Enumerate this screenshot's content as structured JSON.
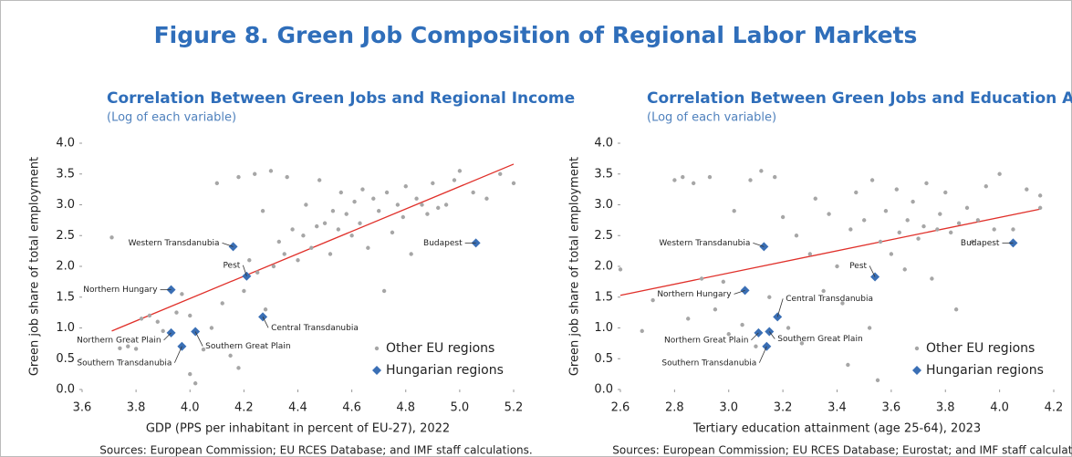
{
  "title": "Figure 8. Green Job Composition of Regional Labor Markets",
  "chart_data": [
    {
      "type": "scatter",
      "title": "Correlation Between Green Jobs and Regional Income",
      "subtitle": "(Log of each variable)",
      "xlabel": "GDP (PPS per inhabitant in percent of EU-27), 2022",
      "ylabel": "Green job share of total employment",
      "source": "Sources: European Commission; EU RCES Database; and IMF staff calculations.",
      "xlim": [
        3.6,
        5.2
      ],
      "ylim": [
        0,
        4
      ],
      "xticks": [
        3.6,
        3.8,
        {
          "value": 4,
          "label": "4.0"
        },
        4.2,
        4.4,
        4.6,
        4.8,
        {
          "value": 5,
          "label": "5.0"
        },
        5.2
      ],
      "yticks": [
        {
          "value": 0,
          "label": "0.0"
        },
        0.5,
        {
          "value": 1,
          "label": "1.0"
        },
        1.5,
        {
          "value": 2,
          "label": "2.0"
        },
        2.5,
        {
          "value": 3,
          "label": "3.0"
        },
        3.5,
        {
          "value": 4,
          "label": "4.0"
        }
      ],
      "legend": "lower right",
      "trendline": {
        "x": [
          3.71,
          5.2
        ],
        "values": [
          0.95,
          3.66
        ],
        "color": "#e0302a"
      },
      "series": [
        {
          "name": "Other EU regions",
          "color": "#a6a6a6",
          "marker": "circle",
          "x": [
            3.71,
            3.74,
            3.77,
            3.8,
            3.82,
            3.85,
            3.88,
            3.9,
            3.95,
            3.97,
            4.0,
            4.0,
            4.02,
            4.05,
            4.08,
            4.1,
            4.12,
            4.15,
            4.18,
            4.18,
            4.2,
            4.22,
            4.24,
            4.25,
            4.27,
            4.28,
            4.3,
            4.31,
            4.33,
            4.35,
            4.36,
            4.38,
            4.4,
            4.42,
            4.43,
            4.45,
            4.47,
            4.48,
            4.5,
            4.52,
            4.53,
            4.55,
            4.56,
            4.58,
            4.6,
            4.61,
            4.63,
            4.64,
            4.66,
            4.68,
            4.7,
            4.72,
            4.73,
            4.75,
            4.77,
            4.79,
            4.8,
            4.82,
            4.84,
            4.86,
            4.88,
            4.9,
            4.92,
            4.95,
            4.98,
            5.0,
            5.05,
            5.1,
            5.15,
            5.2
          ],
          "values": [
            2.47,
            0.67,
            0.7,
            0.66,
            1.15,
            1.2,
            1.1,
            0.95,
            1.25,
            1.55,
            1.2,
            0.25,
            0.1,
            0.65,
            1.0,
            3.35,
            1.4,
            0.55,
            3.45,
            0.35,
            1.6,
            2.1,
            3.5,
            1.9,
            2.9,
            1.3,
            3.55,
            2.0,
            2.4,
            2.2,
            3.45,
            2.6,
            2.1,
            2.5,
            3.0,
            2.3,
            2.65,
            3.4,
            2.7,
            2.2,
            2.9,
            2.6,
            3.2,
            2.85,
            2.5,
            3.05,
            2.7,
            3.25,
            2.3,
            3.1,
            2.9,
            1.6,
            3.2,
            2.55,
            3.0,
            2.8,
            3.3,
            2.2,
            3.1,
            3.0,
            2.85,
            3.35,
            2.95,
            3.0,
            3.4,
            3.55,
            3.2,
            3.1,
            3.5,
            3.35
          ]
        },
        {
          "name": "Hungarian regions",
          "color": "#3a6fb5",
          "marker": "diamond",
          "labels": [
            "Budapest",
            "Western Transdanubia",
            "Pest",
            "Northern Hungary",
            "Central Transdanubia",
            "Northern Great Plain",
            "Southern Great Plain",
            "Southern Transdanubia"
          ],
          "x": [
            5.06,
            4.16,
            4.21,
            3.93,
            4.27,
            3.93,
            4.02,
            3.97
          ],
          "values": [
            2.38,
            2.32,
            1.84,
            1.62,
            1.18,
            0.92,
            0.94,
            0.7
          ]
        }
      ]
    },
    {
      "type": "scatter",
      "title": "Correlation Between Green Jobs and Education Attainment",
      "subtitle": "(Log of each variable)",
      "xlabel": "Tertiary education attainment (age 25-64), 2023",
      "ylabel": "Green job share of total employment",
      "source": "Sources: European Commission; EU RCES Database; Eurostat; and IMF staff calculations.",
      "xlim": [
        2.6,
        4.2
      ],
      "ylim": [
        0,
        4
      ],
      "xticks": [
        2.6,
        2.8,
        {
          "value": 3,
          "label": "3.0"
        },
        3.2,
        3.4,
        3.6,
        3.8,
        {
          "value": 4,
          "label": "4.0"
        },
        4.2
      ],
      "yticks": [
        {
          "value": 0,
          "label": "0.0"
        },
        0.5,
        {
          "value": 1,
          "label": "1.0"
        },
        1.5,
        {
          "value": 2,
          "label": "2.0"
        },
        2.5,
        {
          "value": 3,
          "label": "3.0"
        },
        3.5,
        {
          "value": 4,
          "label": "4.0"
        }
      ],
      "legend": "lower right",
      "trendline": {
        "x": [
          2.6,
          4.15
        ],
        "values": [
          1.53,
          2.93
        ],
        "color": "#e0302a"
      },
      "series": [
        {
          "name": "Other EU regions",
          "color": "#a6a6a6",
          "marker": "circle",
          "x": [
            2.6,
            2.68,
            2.72,
            2.8,
            2.83,
            2.85,
            2.87,
            2.9,
            2.93,
            2.95,
            2.98,
            3.0,
            3.02,
            3.05,
            3.08,
            3.1,
            3.12,
            3.15,
            3.17,
            3.2,
            3.22,
            3.25,
            3.27,
            3.3,
            3.32,
            3.35,
            3.37,
            3.4,
            3.42,
            3.44,
            3.45,
            3.47,
            3.5,
            3.52,
            3.53,
            3.55,
            3.56,
            3.58,
            3.6,
            3.62,
            3.63,
            3.65,
            3.66,
            3.68,
            3.7,
            3.72,
            3.73,
            3.75,
            3.77,
            3.78,
            3.8,
            3.82,
            3.84,
            3.85,
            3.88,
            3.9,
            3.92,
            3.95,
            3.98,
            4.0,
            4.05,
            4.1,
            4.15,
            4.15
          ],
          "values": [
            1.95,
            0.95,
            1.45,
            3.4,
            3.45,
            1.15,
            3.35,
            1.8,
            3.45,
            1.3,
            1.75,
            0.9,
            2.9,
            1.05,
            3.4,
            0.7,
            3.55,
            1.5,
            3.45,
            2.8,
            1.0,
            2.5,
            0.75,
            2.2,
            3.1,
            1.6,
            2.85,
            2.0,
            1.4,
            0.4,
            2.6,
            3.2,
            2.75,
            1.0,
            3.4,
            0.15,
            2.4,
            2.9,
            2.2,
            3.25,
            2.55,
            1.95,
            2.75,
            3.05,
            2.45,
            2.65,
            3.35,
            1.8,
            2.6,
            2.85,
            3.2,
            2.55,
            1.3,
            2.7,
            2.95,
            2.4,
            2.75,
            3.3,
            2.6,
            3.5,
            2.6,
            3.25,
            3.15,
            2.95
          ]
        },
        {
          "name": "Hungarian regions",
          "color": "#3a6fb5",
          "marker": "diamond",
          "labels": [
            "Budapest",
            "Western Transdanubia",
            "Pest",
            "Northern Hungary",
            "Central Transdanubia",
            "Northern Great Plain",
            "Southern Great Plain",
            "Southern Transdanubia"
          ],
          "x": [
            4.05,
            3.13,
            3.54,
            3.06,
            3.18,
            3.11,
            3.15,
            3.14
          ],
          "values": [
            2.38,
            2.32,
            1.83,
            1.61,
            1.18,
            0.92,
            0.94,
            0.7
          ]
        }
      ]
    }
  ]
}
